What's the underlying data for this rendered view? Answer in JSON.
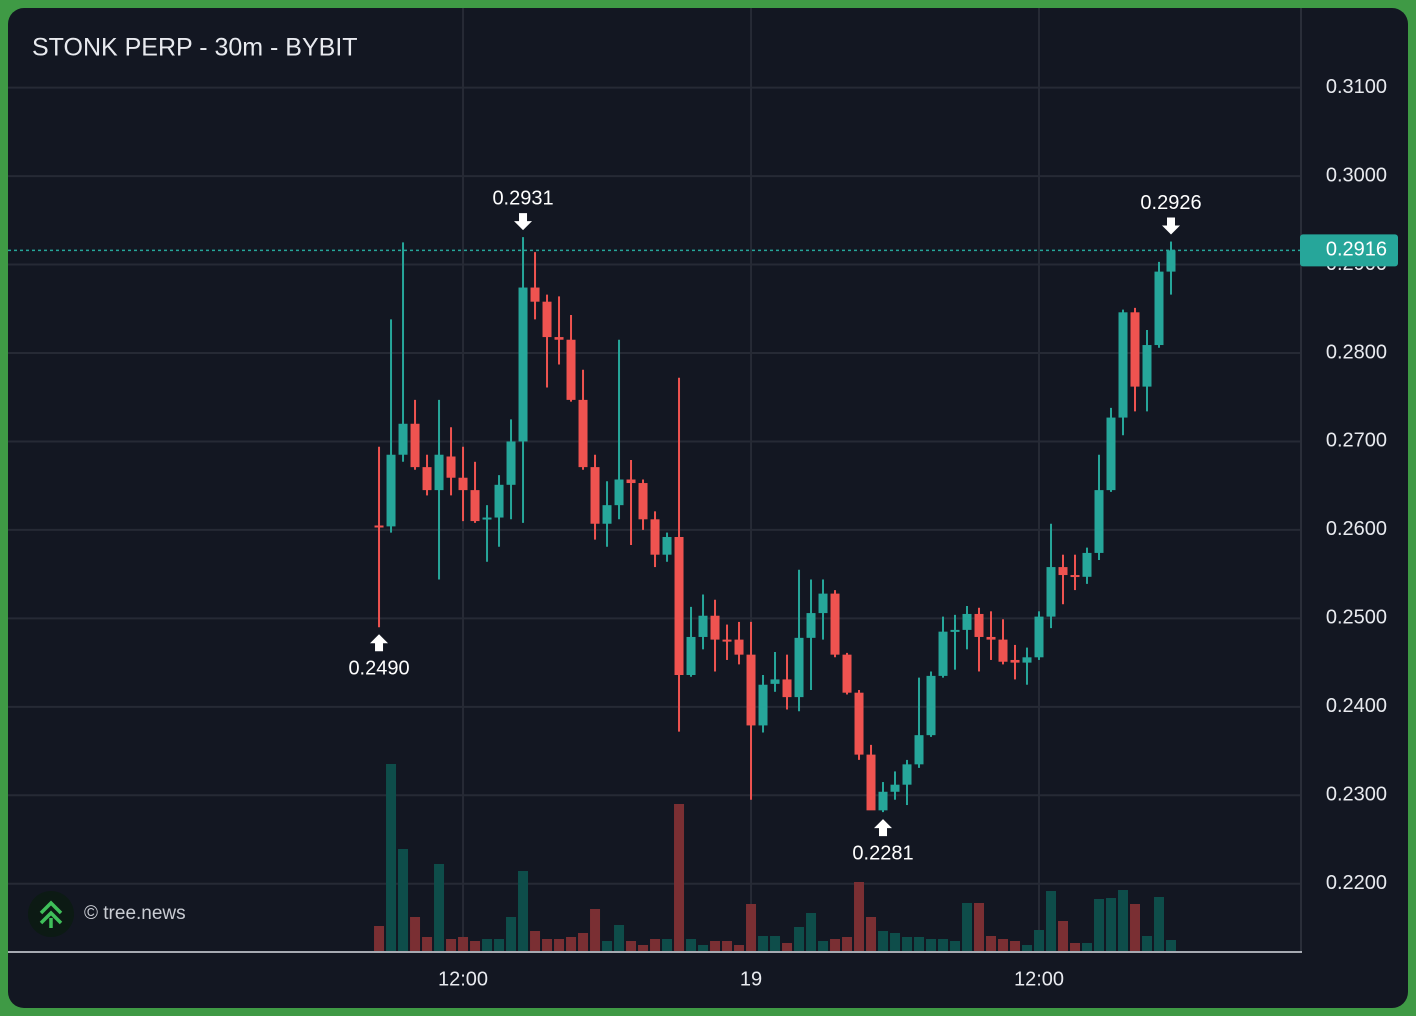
{
  "chart_data": {
    "type": "candlestick",
    "title": "STONK PERP - 30m - BYBIT",
    "watermark": "© tree.news",
    "up_color": "#26a69a",
    "down_color": "#ef5350",
    "volume_up_color": "#0e4d4a",
    "volume_down_color": "#7a2f33",
    "open": [
      0.2605,
      0.2604,
      0.2685,
      0.272,
      0.2671,
      0.2645,
      0.2683,
      0.2659,
      0.2645,
      0.2612,
      0.2614,
      0.2651,
      0.27,
      0.2874,
      0.2858,
      0.2818,
      0.2815,
      0.2747,
      0.2671,
      0.2607,
      0.2628,
      0.2657,
      0.2653,
      0.2612,
      0.2572,
      0.2592,
      0.2436,
      0.2479,
      0.2503,
      0.2476,
      0.2476,
      0.2459,
      0.2379,
      0.2426,
      0.2431,
      0.2411,
      0.2478,
      0.2506,
      0.2528,
      0.2459,
      0.2416,
      0.2346,
      0.2283,
      0.2304,
      0.2312,
      0.2335,
      0.2368,
      0.2435,
      0.2485,
      0.2487,
      0.2505,
      0.2479,
      0.2476,
      0.2453,
      0.245,
      0.2456,
      0.2502,
      0.2558,
      0.2549,
      0.2547,
      0.2574,
      0.2645,
      0.2727,
      0.2846,
      0.2762,
      0.2809,
      0.2892
    ],
    "high": [
      0.2694,
      0.2838,
      0.2925,
      0.2747,
      0.2685,
      0.2747,
      0.2716,
      0.2694,
      0.2677,
      0.2628,
      0.2662,
      0.2725,
      0.2931,
      0.2914,
      0.2866,
      0.2864,
      0.2843,
      0.2781,
      0.2685,
      0.2655,
      0.2815,
      0.2679,
      0.2657,
      0.2621,
      0.2597,
      0.2772,
      0.2513,
      0.2527,
      0.2521,
      0.2493,
      0.2496,
      0.2496,
      0.2436,
      0.2462,
      0.2459,
      0.2555,
      0.2544,
      0.2544,
      0.2532,
      0.2461,
      0.2419,
      0.2357,
      0.2315,
      0.2327,
      0.234,
      0.2433,
      0.244,
      0.2502,
      0.2504,
      0.2514,
      0.2512,
      0.2508,
      0.2499,
      0.247,
      0.2467,
      0.2508,
      0.2607,
      0.2572,
      0.2572,
      0.258,
      0.2685,
      0.2738,
      0.2849,
      0.2851,
      0.2826,
      0.2903,
      0.2926
    ],
    "low": [
      0.249,
      0.2597,
      0.2677,
      0.2668,
      0.2639,
      0.2544,
      0.2639,
      0.261,
      0.2608,
      0.2564,
      0.2581,
      0.2612,
      0.2608,
      0.2838,
      0.2761,
      0.2787,
      0.2745,
      0.2668,
      0.2589,
      0.2581,
      0.2612,
      0.2583,
      0.26,
      0.2558,
      0.2564,
      0.2372,
      0.2434,
      0.2465,
      0.244,
      0.2453,
      0.2448,
      0.2295,
      0.2371,
      0.2417,
      0.2397,
      0.2395,
      0.2419,
      0.2476,
      0.2456,
      0.2414,
      0.234,
      0.2284,
      0.2281,
      0.2295,
      0.2289,
      0.2331,
      0.2366,
      0.2433,
      0.2442,
      0.2465,
      0.244,
      0.2453,
      0.2448,
      0.2431,
      0.2425,
      0.2453,
      0.2489,
      0.2516,
      0.2532,
      0.2539,
      0.2566,
      0.2643,
      0.2707,
      0.2734,
      0.2734,
      0.2806,
      0.2866
    ],
    "close": [
      0.2603,
      0.2685,
      0.272,
      0.2671,
      0.2645,
      0.2685,
      0.2659,
      0.2645,
      0.261,
      0.2614,
      0.2651,
      0.27,
      0.2874,
      0.2858,
      0.2818,
      0.2815,
      0.2747,
      0.2671,
      0.2607,
      0.2628,
      0.2657,
      0.2653,
      0.2612,
      0.2572,
      0.2592,
      0.2436,
      0.2479,
      0.2503,
      0.2476,
      0.2475,
      0.2459,
      0.2379,
      0.2425,
      0.2431,
      0.2411,
      0.2478,
      0.2506,
      0.2528,
      0.2459,
      0.2416,
      0.2346,
      0.2283,
      0.2304,
      0.2312,
      0.2335,
      0.2368,
      0.2435,
      0.2485,
      0.2487,
      0.2505,
      0.2479,
      0.2476,
      0.2451,
      0.245,
      0.2456,
      0.2502,
      0.2558,
      0.2549,
      0.2547,
      0.2574,
      0.2645,
      0.2727,
      0.2846,
      0.2762,
      0.2809,
      0.2892,
      0.2916
    ],
    "volume": [
      25,
      187,
      102,
      34,
      14,
      87,
      12,
      14,
      10,
      12,
      12,
      34,
      80,
      20,
      12,
      12,
      14,
      18,
      42,
      10,
      26,
      10,
      6,
      12,
      12,
      147,
      12,
      6,
      10,
      10,
      6,
      47,
      15,
      15,
      8,
      24,
      38,
      10,
      12,
      14,
      69,
      34,
      20,
      18,
      14,
      14,
      12,
      12,
      10,
      48,
      48,
      15,
      12,
      10,
      6,
      21,
      60,
      30,
      8,
      8,
      52,
      53,
      61,
      47,
      15,
      54,
      11
    ],
    "xlim": [
      -30.92,
      76.75
    ],
    "xticks": [
      {
        "value": 7,
        "label": "12:00"
      },
      {
        "value": 31,
        "label": "19"
      },
      {
        "value": 55,
        "label": "12:00"
      }
    ],
    "ylim": [
      0.2124,
      0.319
    ],
    "yticks": [
      {
        "value": 0.22,
        "label": "0.2200"
      },
      {
        "value": 0.23,
        "label": "0.2300"
      },
      {
        "value": 0.24,
        "label": "0.2400"
      },
      {
        "value": 0.25,
        "label": "0.2500"
      },
      {
        "value": 0.26,
        "label": "0.2600"
      },
      {
        "value": 0.27,
        "label": "0.2700"
      },
      {
        "value": 0.28,
        "label": "0.2800"
      },
      {
        "value": 0.29,
        "label": "0.2900"
      },
      {
        "value": 0.3,
        "label": "0.3000"
      },
      {
        "value": 0.31,
        "label": "0.3100"
      }
    ],
    "grid": true,
    "last_price": {
      "value": 0.2916,
      "label": "0.2916"
    },
    "annotations": [
      {
        "x": 0,
        "value": 0.249,
        "label": "0.2490",
        "kind": "low"
      },
      {
        "x": 12,
        "value": 0.2931,
        "label": "0.2931",
        "kind": "high"
      },
      {
        "x": 42,
        "value": 0.2281,
        "label": "0.2281",
        "kind": "low"
      },
      {
        "x": 66,
        "value": 0.2926,
        "label": "0.2926",
        "kind": "high"
      }
    ]
  }
}
